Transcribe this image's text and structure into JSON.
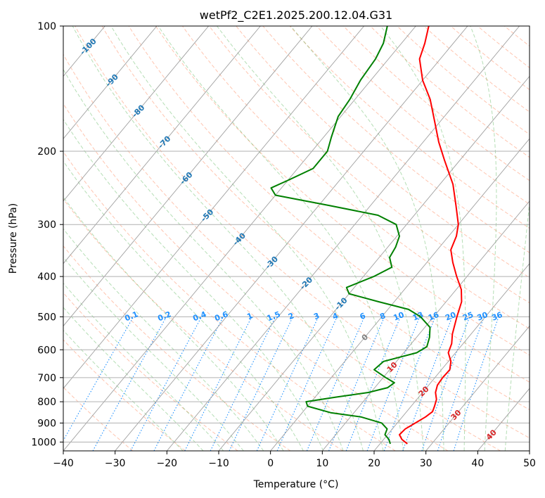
{
  "chart_data": {
    "type": "line",
    "title": "wetPf2_C2E1.2025.200.12.04.G31",
    "xlabel": "Temperature (°C)",
    "ylabel": "Pressure (hPa)",
    "xlim": [
      -40,
      50
    ],
    "ylim": [
      1050,
      100
    ],
    "y_scale": "log",
    "grid": true,
    "x_ticks": [
      -40,
      -30,
      -20,
      -10,
      0,
      10,
      20,
      30,
      40,
      50
    ],
    "y_ticks": [
      100,
      200,
      300,
      400,
      500,
      600,
      700,
      800,
      900,
      1000
    ],
    "skew_per_decade": 0.65,
    "colors": {
      "temperature": "#ff0000",
      "dewpoint": "#008000",
      "dry_adiabat": "#ff7f50",
      "moist_adiabat": "#2ca02c",
      "mixing_ratio": "#1e90ff",
      "isotherm": "#808080",
      "isotherm_label_warm": "#d62728",
      "isotherm_label_cold": "#1f77b4",
      "isotherm_label_zero": "#808080"
    },
    "isotherm_labels": [
      {
        "t": -100,
        "label": "-100"
      },
      {
        "t": -90,
        "label": "-90"
      },
      {
        "t": -80,
        "label": "-80"
      },
      {
        "t": -70,
        "label": "-70"
      },
      {
        "t": -60,
        "label": "-60"
      },
      {
        "t": -50,
        "label": "-50"
      },
      {
        "t": -40,
        "label": "-40"
      },
      {
        "t": -30,
        "label": "-30"
      },
      {
        "t": -20,
        "label": "-20"
      },
      {
        "t": -10,
        "label": "-10"
      },
      {
        "t": 0,
        "label": "0"
      },
      {
        "t": 10,
        "label": "10"
      },
      {
        "t": 20,
        "label": "20"
      },
      {
        "t": 30,
        "label": "30"
      },
      {
        "t": 40,
        "label": "40"
      }
    ],
    "mixing_ratio_lines": [
      {
        "w": 0.1,
        "label": "0.1"
      },
      {
        "w": 0.2,
        "label": "0.2"
      },
      {
        "w": 0.4,
        "label": "0.4"
      },
      {
        "w": 0.6,
        "label": "0.6"
      },
      {
        "w": 1,
        "label": "1"
      },
      {
        "w": 1.5,
        "label": "1.5"
      },
      {
        "w": 2,
        "label": "2"
      },
      {
        "w": 3,
        "label": "3"
      },
      {
        "w": 4,
        "label": "4"
      },
      {
        "w": 6,
        "label": "6"
      },
      {
        "w": 8,
        "label": "8"
      },
      {
        "w": 10,
        "label": "10"
      },
      {
        "w": 13,
        "label": "13"
      },
      {
        "w": 16,
        "label": "16"
      },
      {
        "w": 20,
        "label": "20"
      },
      {
        "w": 25,
        "label": "25"
      },
      {
        "w": 30,
        "label": "30"
      },
      {
        "w": 36,
        "label": "36"
      }
    ],
    "series": [
      {
        "type": "temperature",
        "points": [
          {
            "p": 1010,
            "t": 25.3
          },
          {
            "p": 985,
            "t": 23.5
          },
          {
            "p": 960,
            "t": 22.3
          },
          {
            "p": 930,
            "t": 22.5
          },
          {
            "p": 900,
            "t": 23.5
          },
          {
            "p": 870,
            "t": 24.5
          },
          {
            "p": 845,
            "t": 25.0
          },
          {
            "p": 820,
            "t": 24.5
          },
          {
            "p": 790,
            "t": 23.8
          },
          {
            "p": 760,
            "t": 22.5
          },
          {
            "p": 730,
            "t": 21.7
          },
          {
            "p": 700,
            "t": 21.5
          },
          {
            "p": 670,
            "t": 21.6
          },
          {
            "p": 640,
            "t": 20.5
          },
          {
            "p": 610,
            "t": 18.6
          },
          {
            "p": 580,
            "t": 17.8
          },
          {
            "p": 550,
            "t": 16.4
          },
          {
            "p": 500,
            "t": 14.5
          },
          {
            "p": 460,
            "t": 13.0
          },
          {
            "p": 430,
            "t": 11.0
          },
          {
            "p": 400,
            "t": 8.0
          },
          {
            "p": 370,
            "t": 5.0
          },
          {
            "p": 345,
            "t": 2.6
          },
          {
            "p": 320,
            "t": 1.5
          },
          {
            "p": 300,
            "t": 0.0
          },
          {
            "p": 270,
            "t": -3.5
          },
          {
            "p": 240,
            "t": -7.5
          },
          {
            "p": 210,
            "t": -13.0
          },
          {
            "p": 190,
            "t": -17.0
          },
          {
            "p": 170,
            "t": -21.0
          },
          {
            "p": 150,
            "t": -25.5
          },
          {
            "p": 135,
            "t": -30.0
          },
          {
            "p": 120,
            "t": -34.0
          },
          {
            "p": 110,
            "t": -35.5
          },
          {
            "p": 100,
            "t": -37.5
          }
        ]
      },
      {
        "type": "dewpoint",
        "points": [
          {
            "p": 1010,
            "t": 22.0
          },
          {
            "p": 985,
            "t": 21.0
          },
          {
            "p": 960,
            "t": 19.5
          },
          {
            "p": 930,
            "t": 19.0
          },
          {
            "p": 900,
            "t": 17.0
          },
          {
            "p": 870,
            "t": 12.0
          },
          {
            "p": 850,
            "t": 5.5
          },
          {
            "p": 820,
            "t": 0.0
          },
          {
            "p": 800,
            "t": -1.0
          },
          {
            "p": 780,
            "t": 4.0
          },
          {
            "p": 760,
            "t": 9.5
          },
          {
            "p": 740,
            "t": 12.5
          },
          {
            "p": 720,
            "t": 13.0
          },
          {
            "p": 700,
            "t": 10.5
          },
          {
            "p": 670,
            "t": 7.0
          },
          {
            "p": 640,
            "t": 7.5
          },
          {
            "p": 610,
            "t": 12.5
          },
          {
            "p": 590,
            "t": 13.5
          },
          {
            "p": 560,
            "t": 12.5
          },
          {
            "p": 530,
            "t": 11.0
          },
          {
            "p": 500,
            "t": 7.5
          },
          {
            "p": 480,
            "t": 4.0
          },
          {
            "p": 460,
            "t": -3.0
          },
          {
            "p": 440,
            "t": -10.0
          },
          {
            "p": 425,
            "t": -11.5
          },
          {
            "p": 400,
            "t": -8.0
          },
          {
            "p": 380,
            "t": -6.0
          },
          {
            "p": 360,
            "t": -8.0
          },
          {
            "p": 340,
            "t": -8.5
          },
          {
            "p": 320,
            "t": -9.5
          },
          {
            "p": 300,
            "t": -12.0
          },
          {
            "p": 285,
            "t": -17.0
          },
          {
            "p": 270,
            "t": -28.0
          },
          {
            "p": 255,
            "t": -40.0
          },
          {
            "p": 245,
            "t": -42.0
          },
          {
            "p": 235,
            "t": -40.0
          },
          {
            "p": 220,
            "t": -37.0
          },
          {
            "p": 200,
            "t": -37.0
          },
          {
            "p": 185,
            "t": -38.5
          },
          {
            "p": 165,
            "t": -40.5
          },
          {
            "p": 150,
            "t": -41.0
          },
          {
            "p": 135,
            "t": -42.0
          },
          {
            "p": 120,
            "t": -42.5
          },
          {
            "p": 110,
            "t": -43.5
          },
          {
            "p": 100,
            "t": -45.5
          }
        ]
      }
    ]
  }
}
